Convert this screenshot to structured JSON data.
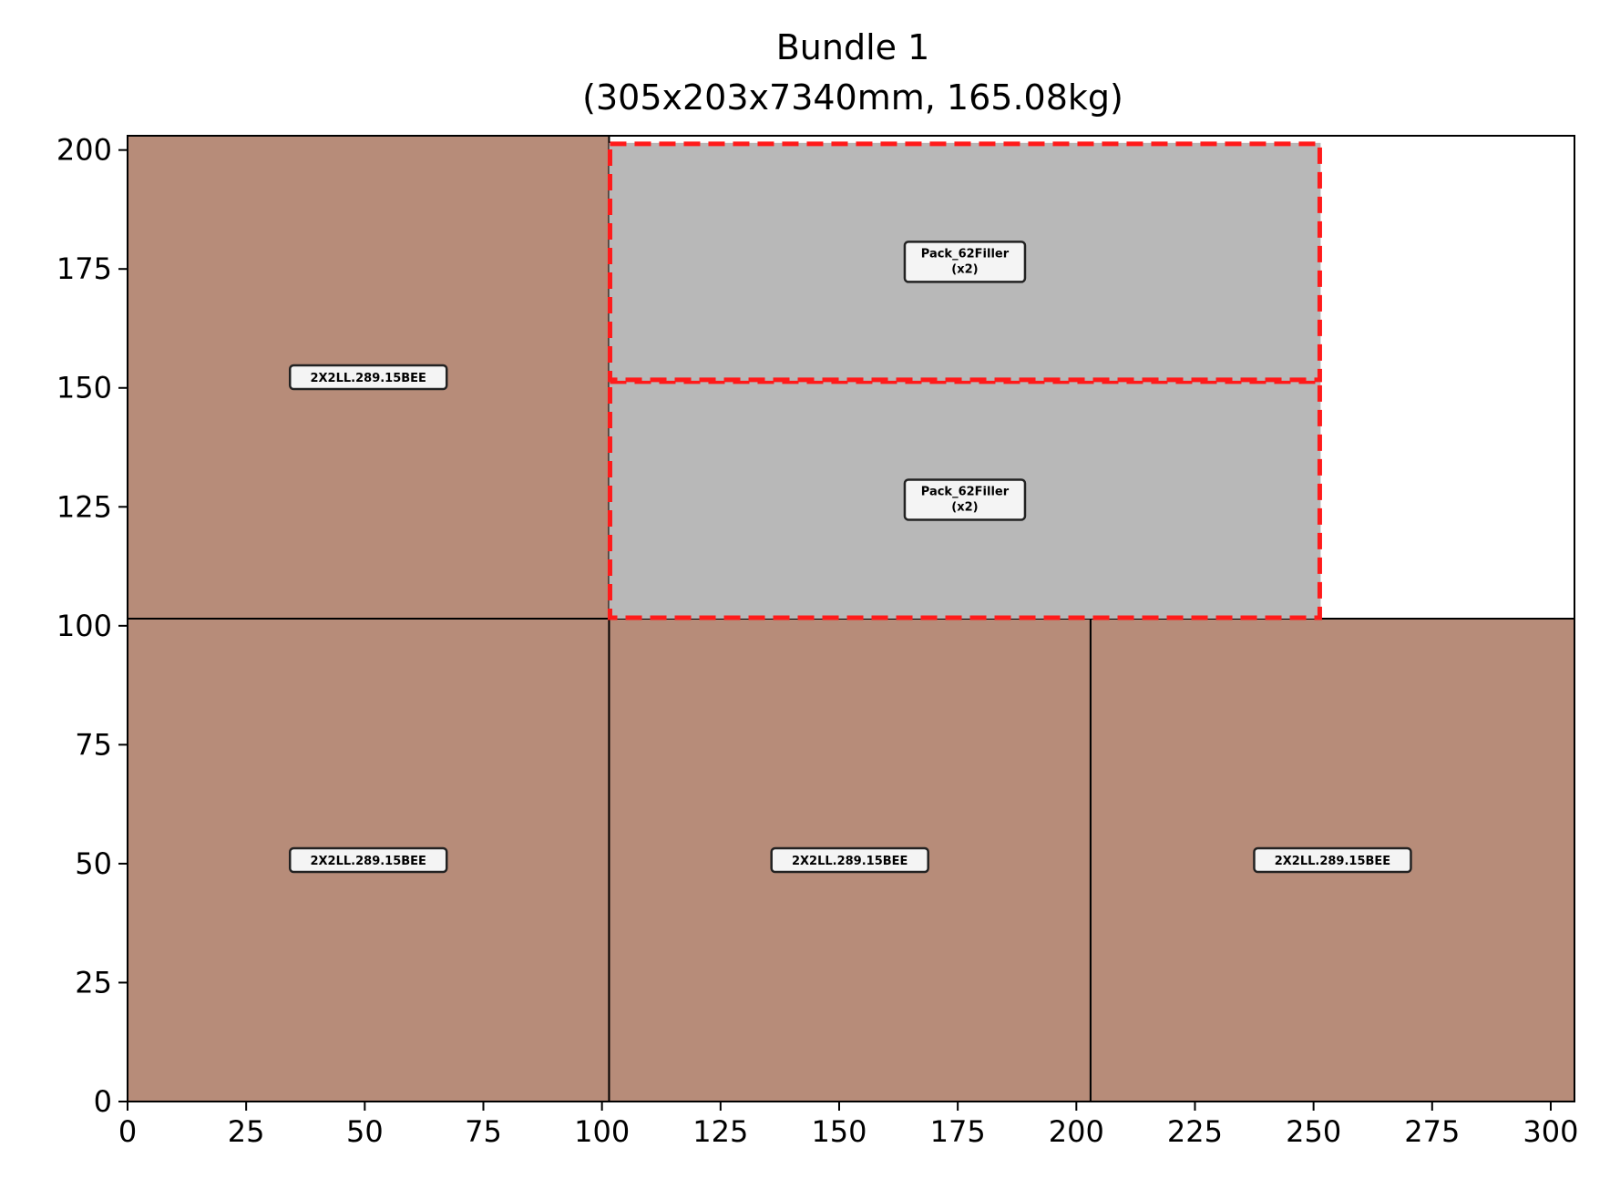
{
  "chart_data": {
    "type": "rectangle_layout",
    "title": "Bundle 1",
    "subtitle": "(305x203x7340mm, 165.08kg)",
    "xlim": [
      0,
      305
    ],
    "ylim": [
      0,
      203
    ],
    "xticks": [
      0,
      25,
      50,
      75,
      100,
      125,
      150,
      175,
      200,
      225,
      250,
      275,
      300
    ],
    "yticks": [
      0,
      25,
      50,
      75,
      100,
      125,
      150,
      175,
      200
    ],
    "grid": false,
    "colors": {
      "timber": "#b78c79",
      "filler": "#b8b8b8",
      "filler_outline": "#ff1a1a",
      "label_bg": "#f4f4f4"
    },
    "rectangles": [
      {
        "x": 0,
        "y": 101.5,
        "w": 101.5,
        "h": 101.5,
        "label": "2X2LL.289.15BEE",
        "kind": "timber"
      },
      {
        "x": 0,
        "y": 0,
        "w": 101.5,
        "h": 101.5,
        "label": "2X2LL.289.15BEE",
        "kind": "timber"
      },
      {
        "x": 101.5,
        "y": 0,
        "w": 101.5,
        "h": 101.5,
        "label": "2X2LL.289.15BEE",
        "kind": "timber"
      },
      {
        "x": 203,
        "y": 0,
        "w": 102,
        "h": 101.5,
        "label": "2X2LL.289.15BEE",
        "kind": "timber"
      },
      {
        "x": 101.5,
        "y": 101.5,
        "w": 150,
        "h": 50,
        "label": "Pack_62Filler",
        "sublabel": "(x2)",
        "kind": "filler"
      },
      {
        "x": 101.5,
        "y": 151.5,
        "w": 150,
        "h": 50,
        "label": "Pack_62Filler",
        "sublabel": "(x2)",
        "kind": "filler"
      }
    ]
  }
}
